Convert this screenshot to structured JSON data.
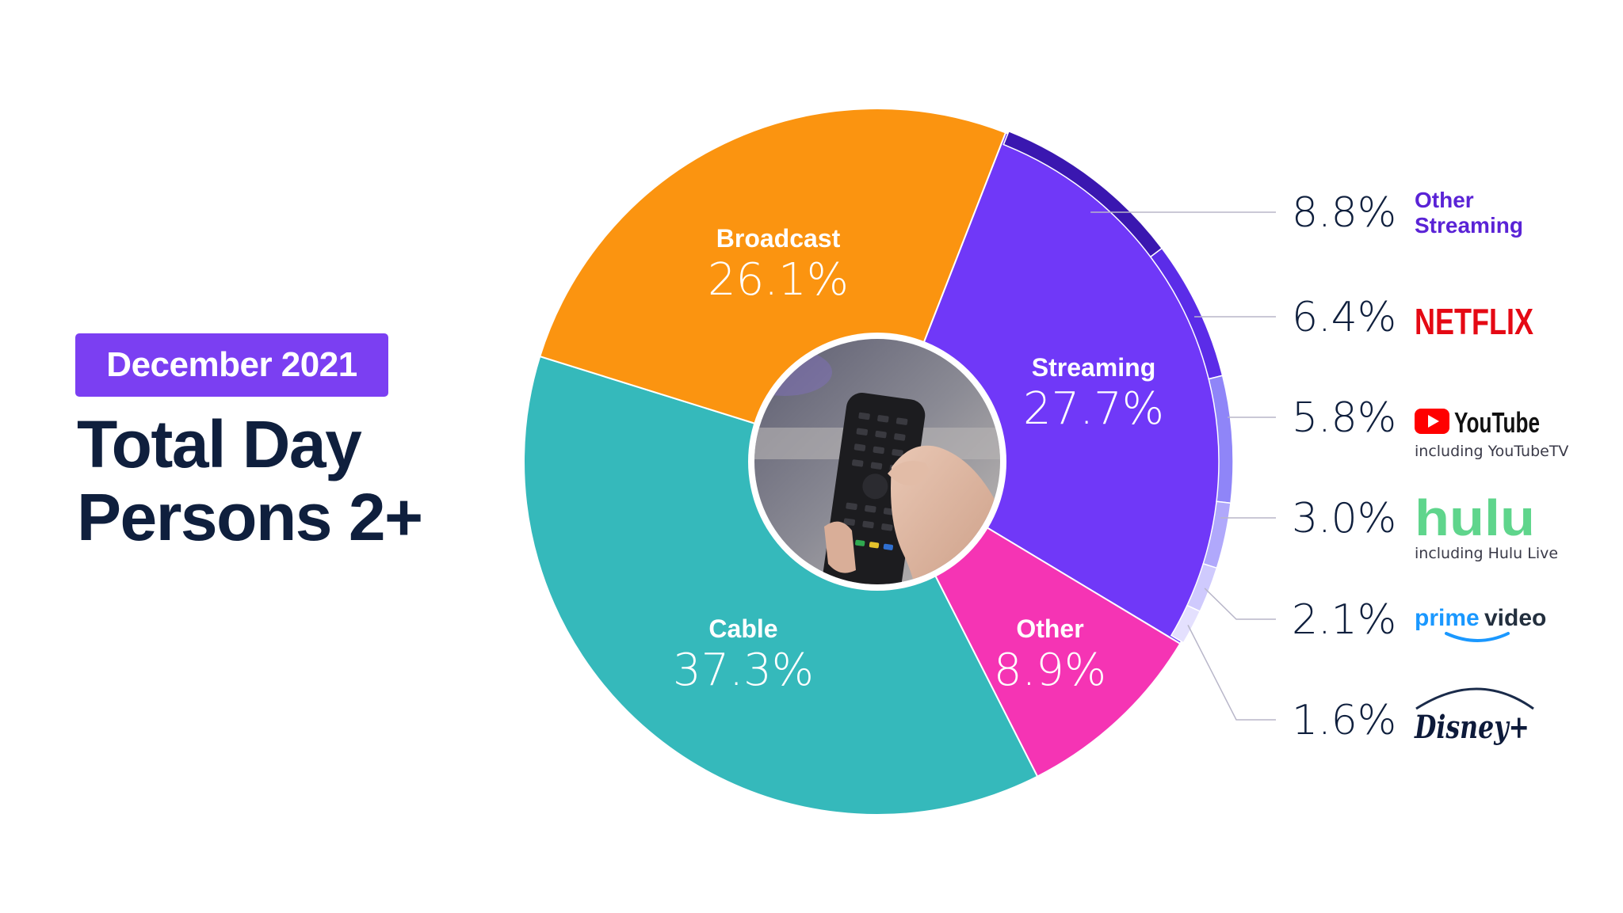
{
  "badge": "December 2021",
  "title": {
    "line1": "Total Day",
    "line2": "Persons 2+"
  },
  "chart_data": {
    "type": "pie",
    "title": "Total Day Persons 2+",
    "subtitle": "December 2021",
    "categories": [
      "Streaming",
      "Other",
      "Cable",
      "Broadcast"
    ],
    "values": [
      27.7,
      8.9,
      37.3,
      26.1
    ],
    "value_labels": [
      "27.7%",
      "8.9%",
      "37.3%",
      "26.1%"
    ],
    "colors": [
      "#7038f8",
      "#f534b4",
      "#35b9bb",
      "#fb9410"
    ],
    "streaming_breakdown": {
      "categories": [
        "Other Streaming",
        "Netflix",
        "YouTube",
        "Hulu",
        "Prime Video",
        "Disney+"
      ],
      "values": [
        8.8,
        6.4,
        5.8,
        3.0,
        2.1,
        1.6
      ],
      "value_labels": [
        "8.8%",
        "6.4%",
        "5.8%",
        "3.0%",
        "2.1%",
        "1.6%"
      ],
      "colors": [
        "#3a17b0",
        "#5b2ce8",
        "#8f85f8",
        "#b0a8fb",
        "#cfcafd",
        "#e4e0fe"
      ],
      "brand_text": {
        "other": [
          "Other",
          "Streaming"
        ],
        "netflix": "NETFLIX",
        "youtube": "YouTube",
        "youtube_note": "including YouTubeTV",
        "hulu": "hulu",
        "hulu_note": "including Hulu Live",
        "prime": [
          "prime",
          "video"
        ],
        "disney": "Disney+"
      },
      "brand_colors": {
        "other": "#5a23d6",
        "netflix": "#e50914",
        "youtube_red": "#ff0000",
        "hulu": "#5fd58c",
        "prime": "#1a98ff"
      }
    }
  }
}
